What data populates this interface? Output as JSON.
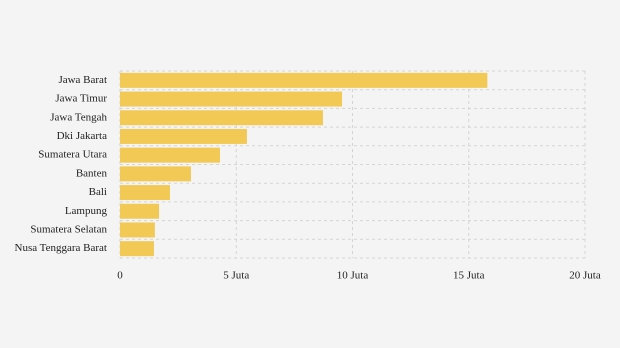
{
  "chart_data": {
    "type": "barh",
    "categories": [
      "Jawa Barat",
      "Jawa Timur",
      "Jawa Tengah",
      "Dki Jakarta",
      "Sumatera Utara",
      "Banten",
      "Bali",
      "Lampung",
      "Sumatera Selatan",
      "Nusa Tenggara Barat"
    ],
    "values": [
      15.8,
      9.55,
      8.73,
      5.46,
      4.3,
      3.05,
      2.15,
      1.68,
      1.5,
      1.46
    ],
    "color": "#f2c955",
    "xlim": [
      0,
      20
    ],
    "xticks": [
      0,
      {
        "value": 5,
        "label": "5 Juta"
      },
      {
        "value": 10,
        "label": "10 Juta"
      },
      {
        "value": 15,
        "label": "15 Juta"
      },
      {
        "value": 20,
        "label": "20 Juta"
      }
    ],
    "grid": true
  }
}
